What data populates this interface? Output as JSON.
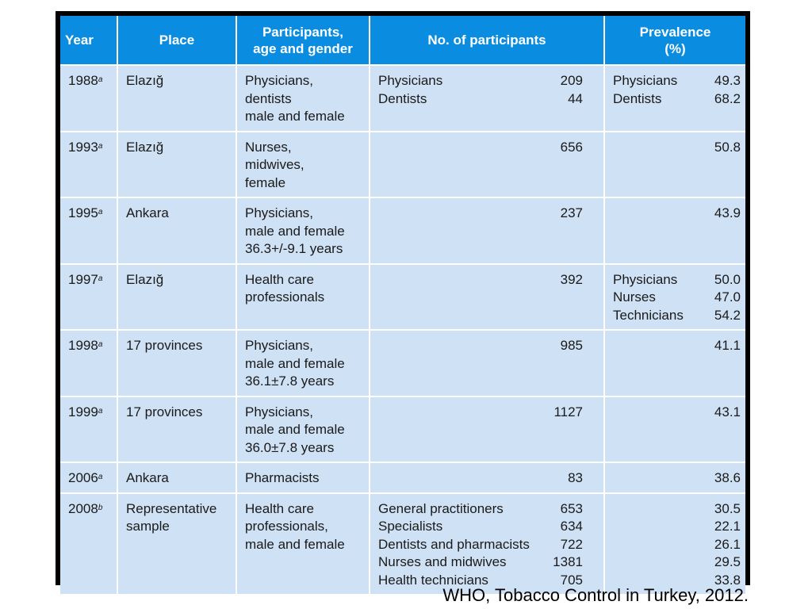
{
  "header": {
    "year": "Year",
    "place": "Place",
    "participants_line1": "Participants,",
    "participants_line2": "age and gender",
    "number": "No. of participants",
    "prevalence_line1": "Prevalence",
    "prevalence_line2": "(%)"
  },
  "rows": [
    {
      "year": "1988",
      "note": "a",
      "place": "Elazığ",
      "participants": [
        "Physicians,",
        "dentists",
        "male and female"
      ],
      "counts": [
        {
          "label": "Physicians",
          "value": "209"
        },
        {
          "label": "Dentists",
          "value": "44"
        }
      ],
      "prevalence": [
        {
          "label": "Physicians",
          "value": "49.3"
        },
        {
          "label": "Dentists",
          "value": "68.2"
        }
      ]
    },
    {
      "year": "1993",
      "note": "a",
      "place": "Elazığ",
      "participants": [
        "Nurses,",
        "midwives,",
        "female"
      ],
      "counts": [
        {
          "label": "",
          "value": "656"
        }
      ],
      "prevalence": [
        {
          "label": "",
          "value": "50.8"
        }
      ]
    },
    {
      "year": "1995",
      "note": "a",
      "place": "Ankara",
      "participants": [
        "Physicians,",
        "male and female",
        "36.3+/-9.1 years"
      ],
      "counts": [
        {
          "label": "",
          "value": "237"
        }
      ],
      "prevalence": [
        {
          "label": "",
          "value": "43.9"
        }
      ]
    },
    {
      "year": "1997",
      "note": "a",
      "place": "Elazığ",
      "participants": [
        "Health care",
        "professionals"
      ],
      "counts": [
        {
          "label": "",
          "value": "392"
        }
      ],
      "prevalence": [
        {
          "label": "Physicians",
          "value": "50.0"
        },
        {
          "label": "Nurses",
          "value": "47.0"
        },
        {
          "label": "Technicians",
          "value": "54.2"
        }
      ]
    },
    {
      "year": "1998",
      "note": "a",
      "place": "17 provinces",
      "participants": [
        "Physicians,",
        "male and female",
        "36.1±7.8 years"
      ],
      "counts": [
        {
          "label": "",
          "value": "985"
        }
      ],
      "prevalence": [
        {
          "label": "",
          "value": "41.1"
        }
      ]
    },
    {
      "year": "1999",
      "note": "a",
      "place": "17 provinces",
      "participants": [
        "Physicians,",
        "male and female",
        "36.0±7.8 years"
      ],
      "counts": [
        {
          "label": "",
          "value": "1127"
        }
      ],
      "prevalence": [
        {
          "label": "",
          "value": "43.1"
        }
      ]
    },
    {
      "year": "2006",
      "note": "a",
      "place": "Ankara",
      "participants": [
        "Pharmacists"
      ],
      "counts": [
        {
          "label": "",
          "value": "83"
        }
      ],
      "prevalence": [
        {
          "label": "",
          "value": "38.6"
        }
      ]
    },
    {
      "year": "2008",
      "note": "b",
      "place": "Representative sample",
      "participants": [
        "Health care",
        "professionals,",
        "male and female"
      ],
      "counts": [
        {
          "label": "General practitioners",
          "value": "653"
        },
        {
          "label": "Specialists",
          "value": "634"
        },
        {
          "label": "Dentists and pharmacists",
          "value": "722"
        },
        {
          "label": "Nurses and midwives",
          "value": "1381"
        },
        {
          "label": "Health technicians",
          "value": "705"
        }
      ],
      "prevalence": [
        {
          "label": "",
          "value": "30.5"
        },
        {
          "label": "",
          "value": "22.1"
        },
        {
          "label": "",
          "value": "26.1"
        },
        {
          "label": "",
          "value": "29.5"
        },
        {
          "label": "",
          "value": "33.8"
        }
      ]
    }
  ],
  "caption": "WHO, Tobacco Control in Turkey, 2012."
}
